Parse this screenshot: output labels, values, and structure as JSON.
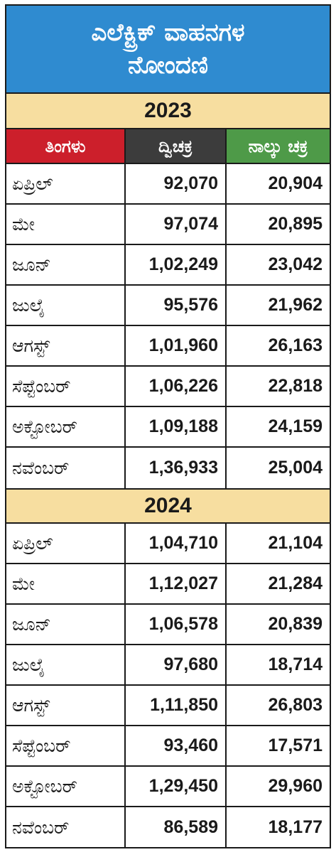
{
  "title": {
    "line1": "ಎಲೆಕ್ಟ್ರಿಕ್ ವಾಹನಗಳ",
    "line2": "ನೋಂದಣಿ"
  },
  "headers": {
    "month": "ತಿಂಗಳು",
    "two_wheeler": "ದ್ವಿಚಕ್ರ",
    "four_wheeler": "ನಾಲ್ಕು ಚಕ್ರ"
  },
  "colors": {
    "title_bg": "#2f8bd0",
    "year_bg": "#f7dea0",
    "month_header_bg": "#cc1f2b",
    "two_wheeler_header_bg": "#3c3c3c",
    "four_wheeler_header_bg": "#4e9a48"
  },
  "sections": [
    {
      "year": "2023",
      "rows": [
        {
          "month": "ಏಪ್ರಿಲ್",
          "two_wheeler": "92,070",
          "four_wheeler": "20,904"
        },
        {
          "month": "ಮೇ",
          "two_wheeler": "97,074",
          "four_wheeler": "20,895"
        },
        {
          "month": "ಜೂನ್",
          "two_wheeler": "1,02,249",
          "four_wheeler": "23,042"
        },
        {
          "month": "ಜುಲೈ",
          "two_wheeler": "95,576",
          "four_wheeler": "21,962"
        },
        {
          "month": "ಆಗಸ್ಟ್",
          "two_wheeler": "1,01,960",
          "four_wheeler": "26,163"
        },
        {
          "month": "ಸೆಪ್ಟೆಂಬರ್",
          "two_wheeler": "1,06,226",
          "four_wheeler": "22,818"
        },
        {
          "month": "ಅಕ್ಟೋಬರ್",
          "two_wheeler": "1,09,188",
          "four_wheeler": "24,159"
        },
        {
          "month": "ನವೆಂಬರ್",
          "two_wheeler": "1,36,933",
          "four_wheeler": "25,004"
        }
      ]
    },
    {
      "year": "2024",
      "rows": [
        {
          "month": "ಏಪ್ರಿಲ್",
          "two_wheeler": "1,04,710",
          "four_wheeler": "21,104"
        },
        {
          "month": "ಮೇ",
          "two_wheeler": "1,12,027",
          "four_wheeler": "21,284"
        },
        {
          "month": "ಜೂನ್",
          "two_wheeler": "1,06,578",
          "four_wheeler": "20,839"
        },
        {
          "month": "ಜುಲೈ",
          "two_wheeler": "97,680",
          "four_wheeler": "18,714"
        },
        {
          "month": "ಆಗಸ್ಟ್",
          "two_wheeler": "1,11,850",
          "four_wheeler": "26,803"
        },
        {
          "month": "ಸೆಪ್ಟೆಂಬರ್",
          "two_wheeler": "93,460",
          "four_wheeler": "17,571"
        },
        {
          "month": "ಅಕ್ಟೋಬರ್",
          "two_wheeler": "1,29,450",
          "four_wheeler": "29,960"
        },
        {
          "month": "ನವೆಂಬರ್",
          "two_wheeler": "86,589",
          "four_wheeler": "18,177"
        }
      ]
    }
  ]
}
